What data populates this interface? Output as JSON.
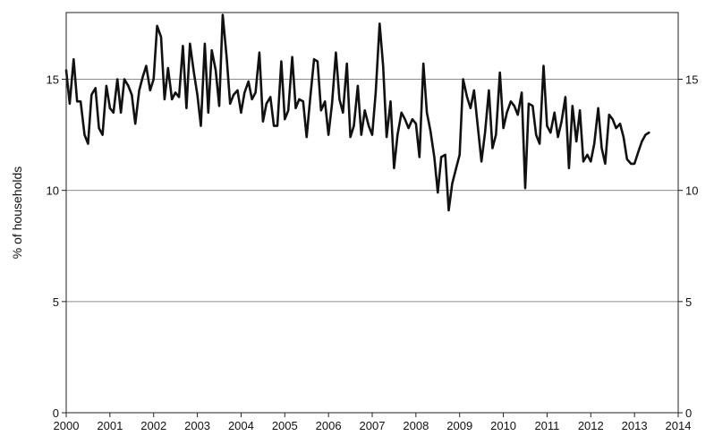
{
  "chart_data": {
    "type": "line",
    "ylabel": "% of households",
    "xlabel": "",
    "title": "",
    "xlim": [
      2000,
      2014
    ],
    "ylim": [
      0,
      18
    ],
    "x_ticks": [
      "2000",
      "2001",
      "2002",
      "2003",
      "2004",
      "2005",
      "2006",
      "2007",
      "2008",
      "2009",
      "2010",
      "2011",
      "2012",
      "2013",
      "2014"
    ],
    "y_ticks": [
      "0",
      "5",
      "10",
      "15"
    ],
    "y_ticks_right": [
      "0",
      "5",
      "10",
      "15"
    ],
    "grid": "horizontal",
    "legend": "none",
    "line_color": "#111111",
    "series": [
      {
        "x": [
          2000.0,
          2000.08,
          2000.17,
          2000.25,
          2000.33,
          2000.42,
          2000.5,
          2000.58,
          2000.67,
          2000.75,
          2000.83,
          2000.92,
          2001.0,
          2001.08,
          2001.17,
          2001.25,
          2001.33,
          2001.42,
          2001.5,
          2001.58,
          2001.67,
          2001.75,
          2001.83,
          2001.92,
          2002.0,
          2002.08,
          2002.17,
          2002.25,
          2002.33,
          2002.42,
          2002.5,
          2002.58,
          2002.67,
          2002.75,
          2002.83,
          2002.92,
          2003.0,
          2003.08,
          2003.17,
          2003.25,
          2003.33,
          2003.42,
          2003.5,
          2003.58,
          2003.67,
          2003.75,
          2003.83,
          2003.92,
          2004.0,
          2004.08,
          2004.17,
          2004.25,
          2004.33,
          2004.42,
          2004.5,
          2004.58,
          2004.67,
          2004.75,
          2004.83,
          2004.92,
          2005.0,
          2005.08,
          2005.17,
          2005.25,
          2005.33,
          2005.42,
          2005.5,
          2005.58,
          2005.67,
          2005.75,
          2005.83,
          2005.92,
          2006.0,
          2006.08,
          2006.17,
          2006.25,
          2006.33,
          2006.42,
          2006.5,
          2006.58,
          2006.67,
          2006.75,
          2006.83,
          2006.92,
          2007.0,
          2007.08,
          2007.17,
          2007.25,
          2007.33,
          2007.42,
          2007.5,
          2007.58,
          2007.67,
          2007.75,
          2007.83,
          2007.92,
          2008.0,
          2008.08,
          2008.17,
          2008.25,
          2008.33,
          2008.42,
          2008.5,
          2008.58,
          2008.67,
          2008.75,
          2008.83,
          2008.92,
          2009.0,
          2009.08,
          2009.17,
          2009.25,
          2009.33,
          2009.42,
          2009.5,
          2009.58,
          2009.67,
          2009.75,
          2009.83,
          2009.92,
          2010.0,
          2010.08,
          2010.17,
          2010.25,
          2010.33,
          2010.42,
          2010.5,
          2010.58,
          2010.67,
          2010.75,
          2010.83,
          2010.92,
          2011.0,
          2011.08,
          2011.17,
          2011.25,
          2011.33,
          2011.42,
          2011.5,
          2011.58,
          2011.67,
          2011.75,
          2011.83,
          2011.92,
          2012.0,
          2012.08,
          2012.17,
          2012.25,
          2012.33,
          2012.42,
          2012.5,
          2012.58,
          2012.67,
          2012.75,
          2012.83,
          2012.92,
          2013.0,
          2013.08,
          2013.17,
          2013.25,
          2013.33
        ],
        "y": [
          15.4,
          13.9,
          15.9,
          14.0,
          14.0,
          12.5,
          12.1,
          14.3,
          14.6,
          12.8,
          12.5,
          14.7,
          13.7,
          13.5,
          15.0,
          13.5,
          15.0,
          14.7,
          14.3,
          13.0,
          14.5,
          15.1,
          15.6,
          14.5,
          15.0,
          17.4,
          16.9,
          14.1,
          15.5,
          14.1,
          14.4,
          14.2,
          16.5,
          13.7,
          16.6,
          15.3,
          14.3,
          12.9,
          16.6,
          13.5,
          16.3,
          15.4,
          13.8,
          17.9,
          16.0,
          13.9,
          14.3,
          14.5,
          13.5,
          14.4,
          14.9,
          14.1,
          14.4,
          16.2,
          13.1,
          13.9,
          14.2,
          12.9,
          12.9,
          15.8,
          13.2,
          13.6,
          16.0,
          13.7,
          14.1,
          14.0,
          12.4,
          14.1,
          15.9,
          15.8,
          13.6,
          14.0,
          12.5,
          13.9,
          16.2,
          14.1,
          13.5,
          15.7,
          12.4,
          12.9,
          14.7,
          12.5,
          13.6,
          12.9,
          12.5,
          14.4,
          17.5,
          15.6,
          12.4,
          14.0,
          11.0,
          12.5,
          13.5,
          13.2,
          12.8,
          13.2,
          13.0,
          11.5,
          15.7,
          13.5,
          12.7,
          11.5,
          9.9,
          11.5,
          11.6,
          9.1,
          10.3,
          11.0,
          11.6,
          15.0,
          14.2,
          13.7,
          14.5,
          12.8,
          11.3,
          12.6,
          14.5,
          11.9,
          12.5,
          15.3,
          12.8,
          13.5,
          14.0,
          13.8,
          13.4,
          14.4,
          10.1,
          13.9,
          13.8,
          12.5,
          12.1,
          15.6,
          12.9,
          12.6,
          13.5,
          12.4,
          13.1,
          14.2,
          11.0,
          13.8,
          12.2,
          13.6,
          11.3,
          11.6,
          11.3,
          12.1,
          13.7,
          11.9,
          11.2,
          13.4,
          13.2,
          12.8,
          13.0,
          12.4,
          11.4,
          11.2,
          11.2,
          11.7,
          12.2,
          12.5,
          12.6
        ]
      }
    ]
  }
}
